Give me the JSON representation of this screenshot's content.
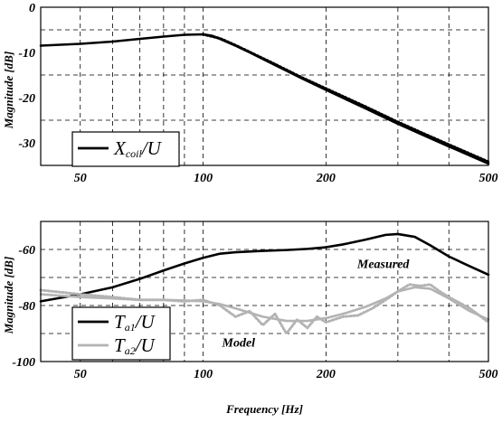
{
  "chart_data": [
    {
      "type": "line",
      "xscale": "log",
      "xlim": [
        40,
        500
      ],
      "ylim": [
        -35,
        0
      ],
      "xticks": [
        50,
        100,
        200,
        500
      ],
      "yticks": [
        0,
        -10,
        -20,
        -30
      ],
      "ylabel": "Magnitude [dB]",
      "xlabel": "",
      "grid": true,
      "legend_position": "bottom-left",
      "legend": [
        {
          "main": "X",
          "sub": "coil",
          "tail": "/U",
          "color": "#000000"
        }
      ],
      "annotations": [],
      "series": [
        {
          "name": "Xcoil/U",
          "color": "#000000",
          "style": "solid",
          "x": [
            40,
            50,
            60,
            70,
            80,
            90,
            100,
            105,
            110,
            120,
            130,
            150,
            175,
            200,
            250,
            300,
            350,
            400,
            450,
            500
          ],
          "y": [
            -8.5,
            -8.1,
            -7.6,
            -7.0,
            -6.5,
            -6.1,
            -6.0,
            -6.3,
            -7.0,
            -8.5,
            -10.0,
            -12.8,
            -15.8,
            -18.3,
            -22.4,
            -25.8,
            -28.5,
            -30.8,
            -32.8,
            -34.6
          ]
        },
        {
          "name": "",
          "color": "#000000",
          "style": "dotted",
          "x": [
            100,
            110,
            120,
            130,
            150,
            175,
            200,
            250,
            300,
            350,
            400,
            450,
            500
          ],
          "y": [
            -6.0,
            -6.9,
            -8.4,
            -9.9,
            -12.6,
            -15.6,
            -18.0,
            -22.0,
            -25.4,
            -28.1,
            -30.4,
            -32.4,
            -34.2
          ]
        }
      ]
    },
    {
      "type": "line",
      "xscale": "log",
      "xlim": [
        40,
        500
      ],
      "ylim": [
        -100,
        -50
      ],
      "xticks": [
        50,
        100,
        200,
        500
      ],
      "yticks": [
        -60,
        -80,
        -100
      ],
      "ylabel": "Magnitude [dB]",
      "xlabel": "Frequency [Hz]",
      "grid": true,
      "legend_position": "bottom-left",
      "legend": [
        {
          "main": "T",
          "sub": "a1",
          "tail": "/U",
          "color": "#000000"
        },
        {
          "main": "T",
          "sub": "a2",
          "tail": "/U",
          "color": "#b3b3b3"
        }
      ],
      "annotations": [
        {
          "text": "Measured",
          "x": 300,
          "y": -65
        },
        {
          "text": "Model",
          "x": 140,
          "y": -93
        }
      ],
      "series": [
        {
          "name": "Ta1/U",
          "color": "#000000",
          "style": "solid",
          "x": [
            40,
            50,
            60,
            70,
            80,
            90,
            100,
            110,
            120,
            140,
            160,
            180,
            200,
            220,
            250,
            280,
            300,
            330,
            360,
            400,
            450,
            500
          ],
          "y": [
            -78.5,
            -76,
            -73.5,
            -70.5,
            -67.5,
            -65,
            -63,
            -61.5,
            -61,
            -60.5,
            -60.2,
            -59.8,
            -59.2,
            -58.2,
            -56.5,
            -54.8,
            -54.5,
            -55.5,
            -58.5,
            -62.5,
            -66,
            -69
          ]
        },
        {
          "name": "Ta2/U",
          "color": "#b3b3b3",
          "style": "solid",
          "x": [
            40,
            50,
            60,
            70,
            80,
            90,
            100,
            110,
            120,
            140,
            160,
            180,
            200,
            220,
            250,
            280,
            300,
            330,
            360,
            400,
            450,
            500
          ],
          "y": [
            -76,
            -77,
            -77.5,
            -78,
            -78,
            -78.2,
            -78.5,
            -79.5,
            -81,
            -84,
            -85.5,
            -85.5,
            -84.5,
            -83,
            -80.5,
            -77.5,
            -75,
            -73.5,
            -74,
            -77.5,
            -82,
            -85
          ]
        },
        {
          "name": "",
          "color": "#b3b3b3",
          "style": "dotted",
          "x": [
            40,
            50,
            60,
            70,
            80,
            90,
            100,
            110,
            120,
            130,
            140,
            150,
            160,
            170,
            180,
            190,
            200,
            220,
            240,
            260,
            280,
            300,
            320,
            340,
            360,
            380,
            400,
            450,
            500
          ],
          "y": [
            -74.5,
            -76,
            -77,
            -78,
            -78,
            -78.5,
            -78,
            -80,
            -84,
            -82,
            -87,
            -83,
            -90,
            -85,
            -88,
            -84,
            -86,
            -84,
            -83.5,
            -81,
            -78,
            -75,
            -72.5,
            -73,
            -72.5,
            -75,
            -77,
            -81,
            -86
          ]
        }
      ]
    }
  ]
}
